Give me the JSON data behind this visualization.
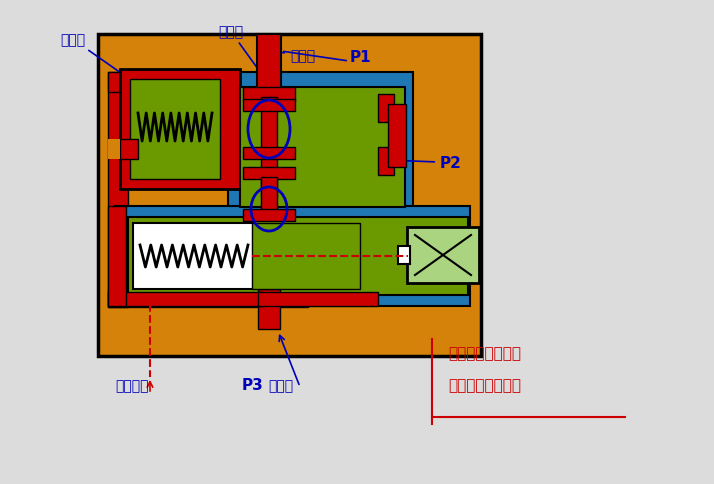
{
  "bg_color": "#dcdcdc",
  "orange": "#d4820a",
  "red": "#cc0000",
  "green": "#6a9a00",
  "light_green": "#aad480",
  "white": "#ffffff",
  "blue": "#0000bb",
  "black": "#000000",
  "label_jieliu": "节流口",
  "label_jianya": "减压口",
  "label_jinyou": "进油口",
  "label_P1": "P1",
  "label_P2": "P2",
  "label_P3": "P3",
  "label_chuyou": "出油口",
  "label_xielou": "泄露油口",
  "label_text1": "当出口压力降底时",
  "label_text2": "当出口压力升高时"
}
